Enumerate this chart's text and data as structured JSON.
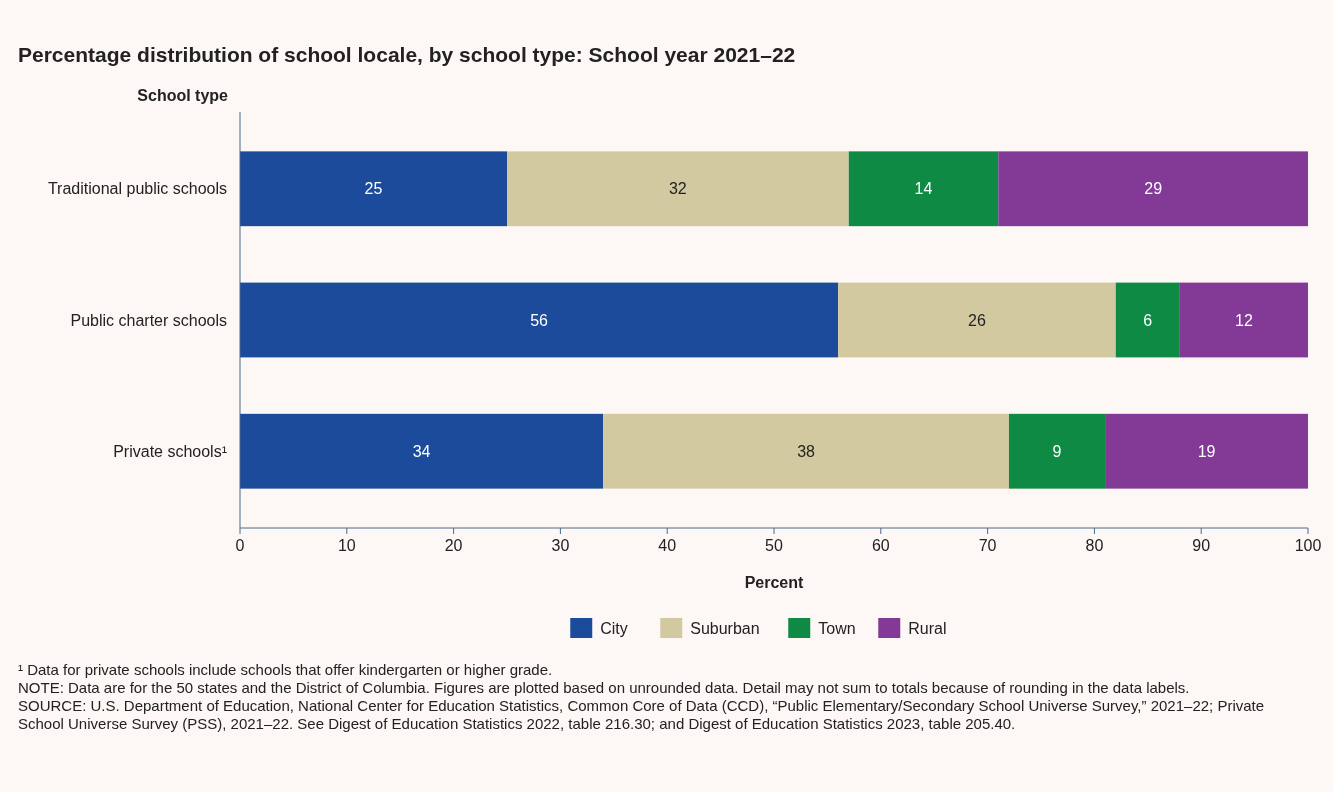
{
  "chart_data": {
    "type": "bar",
    "orientation": "horizontal",
    "stacked": true,
    "title": "Percentage distribution of school locale, by school type: School year 2021–22",
    "ylabel": "School type",
    "xlabel": "Percent",
    "categories": [
      "Traditional public schools",
      "Public charter schools",
      "Private schools¹"
    ],
    "series": [
      {
        "name": "City",
        "color": "#1c4b9c",
        "values": [
          25,
          56,
          34
        ]
      },
      {
        "name": "Suburban",
        "color": "#d2c9a0",
        "values": [
          32,
          26,
          38
        ]
      },
      {
        "name": "Town",
        "color": "#0e8a45",
        "values": [
          14,
          6,
          9
        ]
      },
      {
        "name": "Rural",
        "color": "#833a96",
        "values": [
          29,
          12,
          19
        ]
      }
    ],
    "xlim": [
      0,
      100
    ],
    "xticks": [
      0,
      10,
      20,
      30,
      40,
      50,
      60,
      70,
      80,
      90,
      100
    ],
    "data_labels": true,
    "legend": "bottom",
    "grid": false,
    "annotations": [
      "¹ Data for private schools include schools that offer kindergarten or higher grade.",
      "NOTE: Data are for the 50 states and the District of Columbia. Figures are plotted based on unrounded data. Detail may not sum to totals because of rounding in the data labels.",
      "SOURCE: U.S. Department of Education, National Center for Education Statistics, Common Core of Data (CCD), “Public Elementary/Secondary School Universe Survey,” 2021–22; Private School Universe Survey (PSS), 2021–22. See Digest of Education Statistics 2022, table 216.30; and Digest of Education Statistics 2023, table 205.40."
    ]
  }
}
